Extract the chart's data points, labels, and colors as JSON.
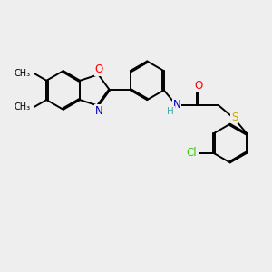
{
  "bg": "#eeeeee",
  "bond_color": "#000000",
  "lw": 1.4,
  "dbo": 0.055,
  "atom_colors": {
    "O": "#ff0000",
    "N": "#0000cc",
    "S": "#ccaa00",
    "Cl": "#33cc00",
    "H": "#44aaaa"
  },
  "fs": 8.5,
  "fig_w": 3.0,
  "fig_h": 3.0,
  "dpi": 100,
  "xlim": [
    0,
    10
  ],
  "ylim": [
    0.5,
    9.5
  ]
}
